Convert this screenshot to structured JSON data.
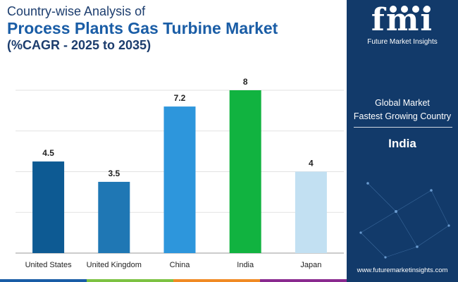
{
  "title": {
    "line1": "Country-wise Analysis of",
    "line2": "Process Plants Gas Turbine Market",
    "line3": "(%CAGR - 2025 to 2035)"
  },
  "chart_data": {
    "type": "bar",
    "categories": [
      "United States",
      "United Kingdom",
      "China",
      "India",
      "Japan"
    ],
    "values": [
      4.5,
      3.5,
      7.2,
      8,
      4
    ],
    "value_labels": [
      "4.5",
      "3.5",
      "7.2",
      "8",
      "4"
    ],
    "bar_colors": [
      "#0d5a93",
      "#1f77b4",
      "#2d96dc",
      "#11b340",
      "#c2e0f2"
    ],
    "ylim": [
      0,
      8
    ],
    "grid": true,
    "xlabel": "",
    "ylabel": ""
  },
  "panel": {
    "logo_text": "fmi",
    "logo_sub": "Future Market Insights",
    "label_line1": "Global Market",
    "label_line2": "Fastest Growing Country",
    "highlight": "India",
    "url": "www.futuremarketinsights.com",
    "bg_color": "#123a6a"
  },
  "bottom_bar_colors": [
    "#1a5da6",
    "#7cc242",
    "#f08a24",
    "#8a2a8f"
  ]
}
